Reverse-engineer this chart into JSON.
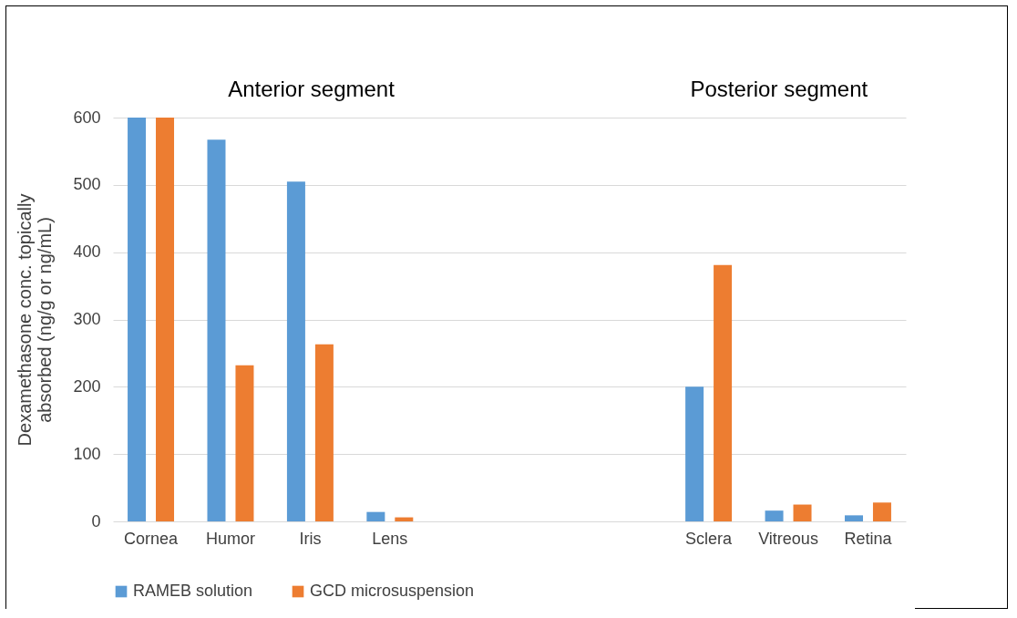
{
  "chart_data": {
    "type": "bar",
    "ylabel": "Dexamethasone  conc. topically absorbed (ng/g or ng/mL)",
    "categories": [
      "Cornea",
      "Humor",
      "Iris",
      "Lens",
      null,
      null,
      null,
      "Sclera",
      "Vitreous",
      "Retina"
    ],
    "series": [
      {
        "name": "RAMEB solution",
        "color": "#5b9bd5",
        "values": [
          600,
          567,
          505,
          14,
          null,
          null,
          null,
          200,
          16,
          9
        ]
      },
      {
        "name": "GCD microsuspension",
        "color": "#ed7d31",
        "values": [
          600,
          232,
          263,
          6,
          null,
          null,
          null,
          381,
          25,
          28
        ]
      }
    ],
    "ylim": [
      0,
      600
    ],
    "yticks": [
      0,
      100,
      200,
      300,
      400,
      500,
      600
    ],
    "grid": "y",
    "legend": "bottom",
    "annotations": [
      "Anterior segment",
      "Posterior segment"
    ]
  }
}
